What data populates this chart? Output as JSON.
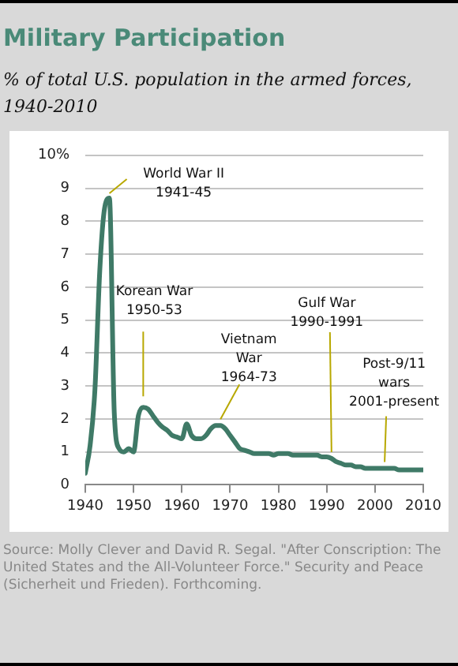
{
  "chart_data": {
    "type": "line",
    "title": "Military Participation",
    "subtitle": "% of total U.S. population in the armed forces, 1940-2010",
    "x": [
      1940,
      1941,
      1942,
      1943,
      1944,
      1945,
      1946,
      1947,
      1948,
      1949,
      1950,
      1951,
      1952,
      1953,
      1954,
      1955,
      1956,
      1957,
      1958,
      1959,
      1960,
      1961,
      1962,
      1963,
      1964,
      1965,
      1966,
      1967,
      1968,
      1969,
      1970,
      1971,
      1972,
      1973,
      1974,
      1975,
      1976,
      1977,
      1978,
      1979,
      1980,
      1981,
      1982,
      1983,
      1984,
      1985,
      1986,
      1987,
      1988,
      1989,
      1990,
      1991,
      1992,
      1993,
      1994,
      1995,
      1996,
      1997,
      1998,
      1999,
      2000,
      2001,
      2002,
      2003,
      2004,
      2005,
      2006,
      2007,
      2008,
      2009,
      2010
    ],
    "series": [
      {
        "color": "#3f7a67",
        "values": [
          0.35,
          1.2,
          2.9,
          6.5,
          8.4,
          8.7,
          2.2,
          1.1,
          1.0,
          1.1,
          1.0,
          2.1,
          2.35,
          2.3,
          2.1,
          1.9,
          1.75,
          1.65,
          1.5,
          1.45,
          1.4,
          1.85,
          1.5,
          1.4,
          1.4,
          1.5,
          1.7,
          1.8,
          1.8,
          1.7,
          1.5,
          1.3,
          1.1,
          1.05,
          1.0,
          0.95,
          0.95,
          0.95,
          0.95,
          0.9,
          0.95,
          0.95,
          0.95,
          0.9,
          0.9,
          0.9,
          0.9,
          0.9,
          0.9,
          0.85,
          0.85,
          0.8,
          0.7,
          0.65,
          0.6,
          0.6,
          0.55,
          0.55,
          0.5,
          0.5,
          0.5,
          0.5,
          0.5,
          0.5,
          0.5,
          0.45,
          0.45,
          0.45,
          0.45,
          0.45,
          0.45
        ]
      }
    ],
    "xlim": [
      1940,
      2010
    ],
    "xticks": [
      1940,
      1950,
      1960,
      1970,
      1980,
      1990,
      2000,
      2010
    ],
    "ylim": [
      0,
      10
    ],
    "yticks": [
      0,
      1,
      2,
      3,
      4,
      5,
      6,
      7,
      8,
      9,
      {
        "value": 10,
        "label": "10%"
      }
    ],
    "grid": "y",
    "marker": "none",
    "line_style": "solid",
    "legend": false,
    "annotations": [
      {
        "text": "World War II\n1941-45",
        "x": 1945,
        "y": 8.7
      },
      {
        "text": "Korean War\n1950-53",
        "x": 1952,
        "y": 2.35
      },
      {
        "text": "Vietnam\nWar\n1964-73",
        "x": 1968,
        "y": 1.8
      },
      {
        "text": "Gulf War\n1990-1991",
        "x": 1991,
        "y": 0.8
      },
      {
        "text": "Post-9/11\nwars\n2001-present",
        "x": 2002,
        "y": 0.5
      },
      "Source: Molly Clever and David R. Segal. \"After Conscription: The United States and the All-Volunteer Force.\" Security and Peace (Sicherheit und Frieden). Forthcoming."
    ]
  }
}
